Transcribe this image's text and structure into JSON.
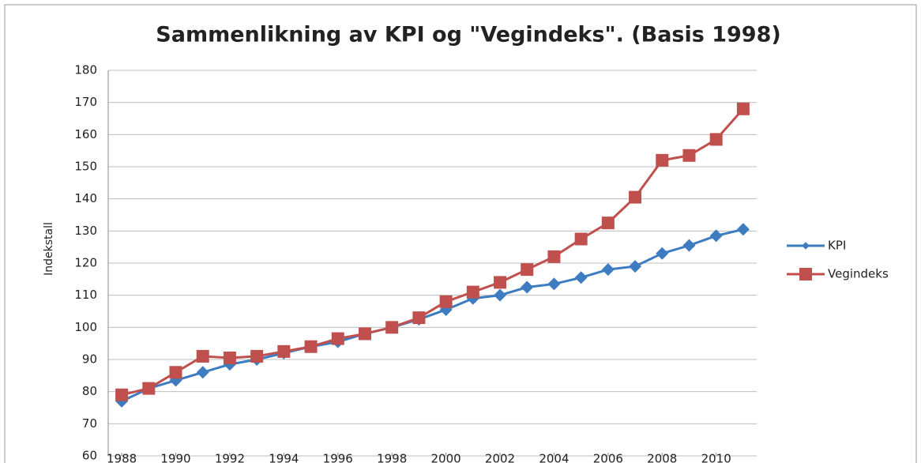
{
  "chart_data": {
    "type": "line",
    "title": "Sammenlikning av KPI og \"Vegindeks\". (Basis 1998)",
    "y_label": "Indekstall",
    "x": [
      1988,
      1989,
      1990,
      1991,
      1992,
      1993,
      1994,
      1995,
      1996,
      1997,
      1998,
      1999,
      2000,
      2001,
      2002,
      2003,
      2004,
      2005,
      2006,
      2007,
      2008,
      2009,
      2010,
      2011
    ],
    "series": [
      {
        "name": "KPI",
        "color": "#3d7cc0",
        "marker": "diamond",
        "values": [
          77,
          81,
          83.5,
          86,
          88.5,
          90,
          92,
          94,
          95.5,
          98,
          100,
          102.5,
          105.5,
          109,
          110,
          112.5,
          113.5,
          115.5,
          118,
          119,
          123,
          125.5,
          128.5,
          130.5
        ]
      },
      {
        "name": "Vegindeks",
        "color": "#c0504d",
        "marker": "square",
        "values": [
          79,
          81,
          86,
          91,
          90.5,
          91,
          92.5,
          94,
          96.5,
          98,
          100,
          103,
          108,
          111,
          114,
          118,
          122,
          127.5,
          132.5,
          140.5,
          152,
          153.5,
          158.5,
          168
        ]
      }
    ],
    "xlim": [
      1987.5,
      2011.5
    ],
    "xticks": [
      1988,
      1990,
      1992,
      1994,
      1996,
      1998,
      2000,
      2002,
      2004,
      2006,
      2008,
      2010
    ],
    "ylim": [
      60,
      180
    ],
    "yticks": [
      60,
      70,
      80,
      90,
      100,
      110,
      120,
      130,
      140,
      150,
      160,
      170,
      180
    ],
    "grid": true,
    "legend": "right"
  }
}
